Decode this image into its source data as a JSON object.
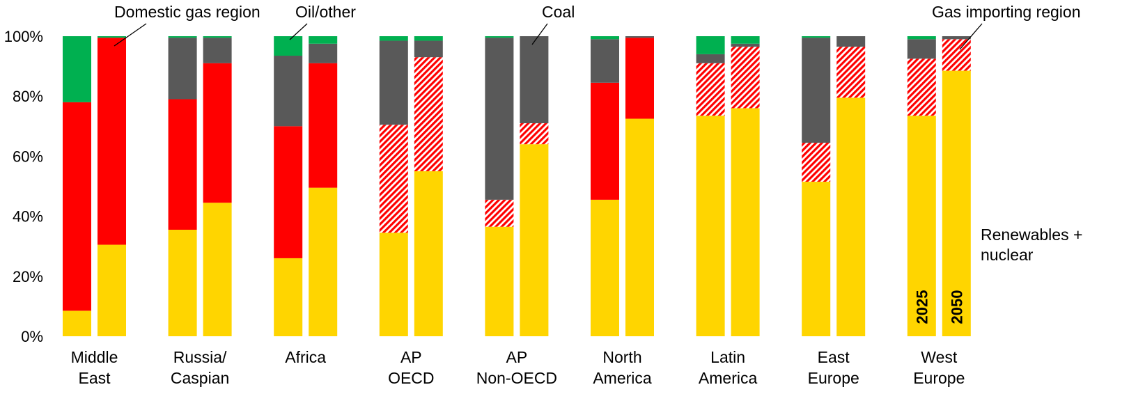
{
  "chart_data": {
    "type": "bar",
    "stacked": true,
    "ylim": [
      0,
      100
    ],
    "y_ticks": [
      "0%",
      "20%",
      "40%",
      "60%",
      "80%",
      "100%"
    ],
    "y_tick_values": [
      0,
      20,
      40,
      60,
      80,
      100
    ],
    "bar_years": [
      "2025",
      "2050"
    ],
    "categories": [
      {
        "label_lines": [
          "Middle",
          "East"
        ]
      },
      {
        "label_lines": [
          "Russia/",
          "Caspian"
        ]
      },
      {
        "label_lines": [
          "Africa"
        ]
      },
      {
        "label_lines": [
          "AP",
          "OECD"
        ]
      },
      {
        "label_lines": [
          "AP",
          "Non-OECD"
        ]
      },
      {
        "label_lines": [
          "North",
          "America"
        ]
      },
      {
        "label_lines": [
          "Latin",
          "America"
        ]
      },
      {
        "label_lines": [
          "East",
          "Europe"
        ]
      },
      {
        "label_lines": [
          "West",
          "Europe"
        ]
      }
    ],
    "series_styles": [
      {
        "key": "renewables_nuclear",
        "color": "#FFD500"
      },
      {
        "key": "gas",
        "color": "#FF0000"
      },
      {
        "key": "coal",
        "color": "#595959"
      },
      {
        "key": "oil_other",
        "color": "#00B050"
      }
    ],
    "gas_pattern": {
      "solid_region_type": "domestic",
      "hatched_region_type": "importing",
      "hatch_colors": [
        "#FF0000",
        "#FFFFFF"
      ]
    },
    "bars": [
      {
        "category": 0,
        "year": "2025",
        "gas_type": "domestic",
        "values": {
          "renewables_nuclear": 8.5,
          "gas": 69.5,
          "coal": 0,
          "oil_other": 22
        }
      },
      {
        "category": 0,
        "year": "2050",
        "gas_type": "domestic",
        "values": {
          "renewables_nuclear": 30.5,
          "gas": 69,
          "coal": 0,
          "oil_other": 0.5
        }
      },
      {
        "category": 1,
        "year": "2025",
        "gas_type": "domestic",
        "values": {
          "renewables_nuclear": 35.5,
          "gas": 43.5,
          "coal": 20.5,
          "oil_other": 0.5
        }
      },
      {
        "category": 1,
        "year": "2050",
        "gas_type": "domestic",
        "values": {
          "renewables_nuclear": 44.5,
          "gas": 46.5,
          "coal": 8.5,
          "oil_other": 0.5
        }
      },
      {
        "category": 2,
        "year": "2025",
        "gas_type": "domestic",
        "values": {
          "renewables_nuclear": 26,
          "gas": 44,
          "coal": 23.5,
          "oil_other": 6.5
        }
      },
      {
        "category": 2,
        "year": "2050",
        "gas_type": "domestic",
        "values": {
          "renewables_nuclear": 49.5,
          "gas": 41.5,
          "coal": 6.5,
          "oil_other": 2.5
        }
      },
      {
        "category": 3,
        "year": "2025",
        "gas_type": "importing",
        "values": {
          "renewables_nuclear": 34.5,
          "gas": 36,
          "coal": 28,
          "oil_other": 1.5
        }
      },
      {
        "category": 3,
        "year": "2050",
        "gas_type": "importing",
        "values": {
          "renewables_nuclear": 55,
          "gas": 38,
          "coal": 5.5,
          "oil_other": 1.5
        }
      },
      {
        "category": 4,
        "year": "2025",
        "gas_type": "importing",
        "values": {
          "renewables_nuclear": 36.5,
          "gas": 9,
          "coal": 54,
          "oil_other": 0.5
        }
      },
      {
        "category": 4,
        "year": "2050",
        "gas_type": "importing",
        "values": {
          "renewables_nuclear": 64,
          "gas": 7,
          "coal": 29,
          "oil_other": 0
        }
      },
      {
        "category": 5,
        "year": "2025",
        "gas_type": "domestic",
        "values": {
          "renewables_nuclear": 45.5,
          "gas": 39,
          "coal": 14.5,
          "oil_other": 1
        }
      },
      {
        "category": 5,
        "year": "2050",
        "gas_type": "domestic",
        "values": {
          "renewables_nuclear": 72.5,
          "gas": 27,
          "coal": 0.5,
          "oil_other": 0
        }
      },
      {
        "category": 6,
        "year": "2025",
        "gas_type": "importing",
        "values": {
          "renewables_nuclear": 73.5,
          "gas": 17.5,
          "coal": 3,
          "oil_other": 6
        }
      },
      {
        "category": 6,
        "year": "2050",
        "gas_type": "importing",
        "values": {
          "renewables_nuclear": 76,
          "gas": 20.5,
          "coal": 1,
          "oil_other": 2.5
        }
      },
      {
        "category": 7,
        "year": "2025",
        "gas_type": "importing",
        "values": {
          "renewables_nuclear": 51.5,
          "gas": 13,
          "coal": 35,
          "oil_other": 0.5
        }
      },
      {
        "category": 7,
        "year": "2050",
        "gas_type": "importing",
        "values": {
          "renewables_nuclear": 79.5,
          "gas": 17,
          "coal": 3.5,
          "oil_other": 0
        }
      },
      {
        "category": 8,
        "year": "2025",
        "gas_type": "importing",
        "values": {
          "renewables_nuclear": 73.5,
          "gas": 19,
          "coal": 6.5,
          "oil_other": 1
        }
      },
      {
        "category": 8,
        "year": "2050",
        "gas_type": "importing",
        "values": {
          "renewables_nuclear": 88.5,
          "gas": 10.5,
          "coal": 1,
          "oil_other": 0
        }
      }
    ],
    "annotations": {
      "domestic_gas": "Domestic gas region",
      "oil_other": "Oil/other",
      "coal": "Coal",
      "gas_importing": "Gas importing region",
      "renewables_nuclear_lines": [
        "Renewables +",
        "nuclear"
      ]
    },
    "year_labels_on_category": 8
  }
}
